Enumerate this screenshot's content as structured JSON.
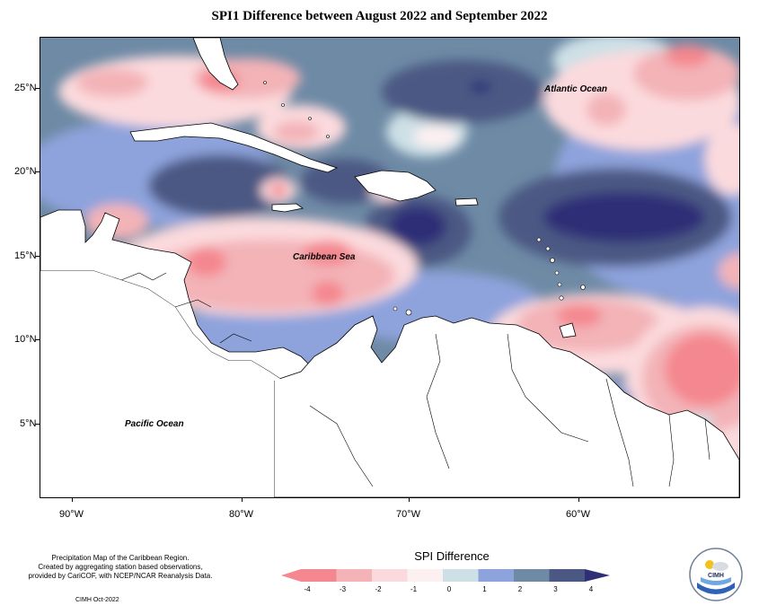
{
  "title": "SPI1 Difference between August 2022 and September 2022",
  "latitude_labels": [
    "25°N",
    "20°N",
    "15°N",
    "10°N",
    "5°N"
  ],
  "longitude_labels": [
    "90°W",
    "80°W",
    "70°W",
    "60°W"
  ],
  "places": {
    "atlantic": "Atlantic Ocean",
    "caribbean": "Caribbean Sea",
    "pacific": "Pacific Ocean"
  },
  "credit": {
    "line1": "Precipitation Map of the Caribbean Region.",
    "line2": "Created by aggregating station based observations,",
    "line3": "provided by CariCOF, with NCEP/NCAR Reanalysis Data.",
    "date": "CIMH Oct-2022"
  },
  "legend": {
    "title": "SPI Difference",
    "ticks": [
      "-4",
      "-3",
      "-2",
      "-1",
      "0",
      "1",
      "2",
      "3",
      "4"
    ],
    "colors": [
      "#f4878f",
      "#f3b3b7",
      "#fbdadd",
      "#fdf0f1",
      "#cde0e6",
      "#8ea3dc",
      "#6e8aa5",
      "#4b5883",
      "#2e2f77"
    ]
  },
  "logo": {
    "name": "CIMH"
  }
}
